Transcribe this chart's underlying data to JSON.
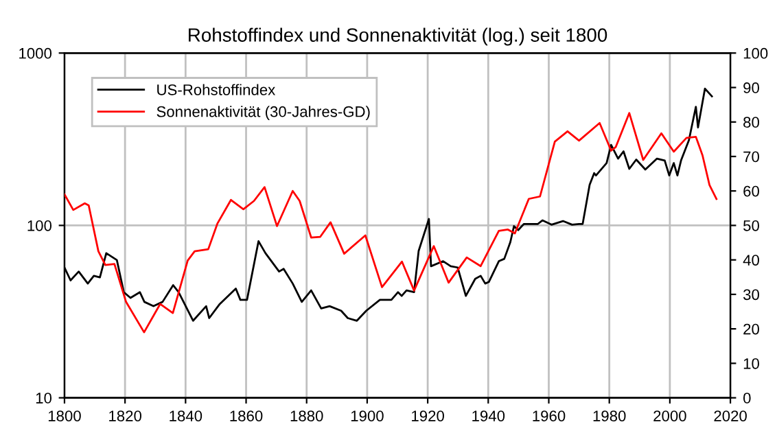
{
  "chart_data": {
    "type": "line",
    "title": "Rohstoffindex und Sonnenaktivität (log.) seit 1800",
    "series": [
      {
        "name": "US-Rohstoffindex",
        "color": "#000000",
        "x": [
          1800,
          1802,
          1804.7,
          1807.7,
          1809.7,
          1811.7,
          1813.8,
          1817.3,
          1819.6,
          1821.8,
          1824.9,
          1826.4,
          1829.4,
          1832.4,
          1835.9,
          1837.7,
          1842.5,
          1846.8,
          1847.8,
          1851.3,
          1856.6,
          1858.1,
          1860.3,
          1864.1,
          1866.4,
          1870.9,
          1872.4,
          1875.4,
          1878.4,
          1881.5,
          1884.8,
          1887.6,
          1891.4,
          1893.6,
          1896.6,
          1899.7,
          1904.2,
          1908,
          1910.2,
          1911.4,
          1913,
          1915.5,
          1917,
          1920.4,
          1921.1,
          1925.1,
          1927.6,
          1929.9,
          1932.6,
          1935.7,
          1937.5,
          1939,
          1940.2,
          1943.5,
          1945.3,
          1947.3,
          1948.5,
          1949.9,
          1951.8,
          1956.4,
          1957.9,
          1960.9,
          1964.7,
          1967.7,
          1970,
          1971.2,
          1973.5,
          1975,
          1975.6,
          1979.1,
          1980.6,
          1982.9,
          1984.7,
          1986.6,
          1988.9,
          1991.9,
          1995.7,
          1998.3,
          1999.8,
          2001.3,
          2002.5,
          2003.7,
          2006.3,
          2008.6,
          2009.3,
          2011.6,
          2013.9
        ],
        "values": [
          57,
          48,
          54,
          46,
          51,
          50,
          69,
          63,
          41,
          38,
          41,
          36,
          34,
          36,
          45,
          41,
          28,
          34,
          29,
          35,
          43,
          37,
          37,
          81,
          69,
          54,
          56,
          46,
          36,
          42,
          33,
          34,
          32,
          29,
          28,
          32,
          37,
          37,
          41,
          39,
          42,
          41,
          71,
          109,
          58,
          62,
          58,
          57,
          39,
          49,
          51,
          46,
          47,
          62,
          64,
          80,
          99,
          94,
          102,
          102,
          107,
          101,
          106,
          101,
          102,
          102,
          172,
          201,
          195,
          230,
          293,
          244,
          269,
          213,
          241,
          211,
          244,
          238,
          195,
          230,
          195,
          238,
          312,
          488,
          370,
          622,
          561
        ]
      },
      {
        "name": "Sonnenaktivität (30-Jahres-GD)",
        "color": "#ff0000",
        "axis": "y2",
        "x": [
          1800,
          1802.9,
          1806.7,
          1808,
          1811.2,
          1813.5,
          1816.5,
          1820.3,
          1826.3,
          1831.6,
          1835.8,
          1840.7,
          1843,
          1847.5,
          1850.5,
          1855,
          1859.1,
          1862.6,
          1866.1,
          1870.2,
          1875.4,
          1877.7,
          1881.5,
          1884.5,
          1887.9,
          1892.4,
          1899.4,
          1904.9,
          1911.5,
          1915.5,
          1922,
          1926.9,
          1932.9,
          1937.5,
          1943.5,
          1946.5,
          1948.8,
          1953.4,
          1957.1,
          1962,
          1966.2,
          1970,
          1976.8,
          1980.6,
          1982.1,
          1986.6,
          1991.2,
          1997.2,
          2001.3,
          2005.5,
          2008.6,
          2010.8,
          2013.1,
          2015.4
        ],
        "values": [
          59,
          54.5,
          56.4,
          55.8,
          42.5,
          38.5,
          38.8,
          27.9,
          19,
          27.2,
          24.6,
          39.8,
          42.5,
          43.1,
          50.5,
          57.4,
          54.7,
          57.1,
          61.1,
          49.8,
          60,
          57.1,
          46.5,
          46.7,
          50.9,
          41.8,
          47.1,
          32.1,
          39.5,
          31.1,
          44,
          33.4,
          40.7,
          38.2,
          48.4,
          48.8,
          47.7,
          57.7,
          58.4,
          74.3,
          77.3,
          74.6,
          79.7,
          71.7,
          72.7,
          82.6,
          69,
          76.7,
          71.4,
          75.4,
          75.7,
          70.3,
          61.7,
          57.7
        ]
      }
    ],
    "log": "y",
    "xlim": [
      1800,
      2020
    ],
    "xticks": [
      1800,
      1820,
      1840,
      1860,
      1880,
      1900,
      1920,
      1940,
      1960,
      1980,
      2000,
      2020
    ],
    "ylim": [
      10,
      1000
    ],
    "yticks": [
      10,
      100,
      1000
    ],
    "y2lim": [
      0,
      100
    ],
    "y2ticks": [
      0,
      10,
      20,
      30,
      40,
      50,
      60,
      70,
      80,
      90,
      100
    ],
    "grid": true,
    "legend": "top left",
    "marker": "none",
    "line_style": "solid"
  }
}
